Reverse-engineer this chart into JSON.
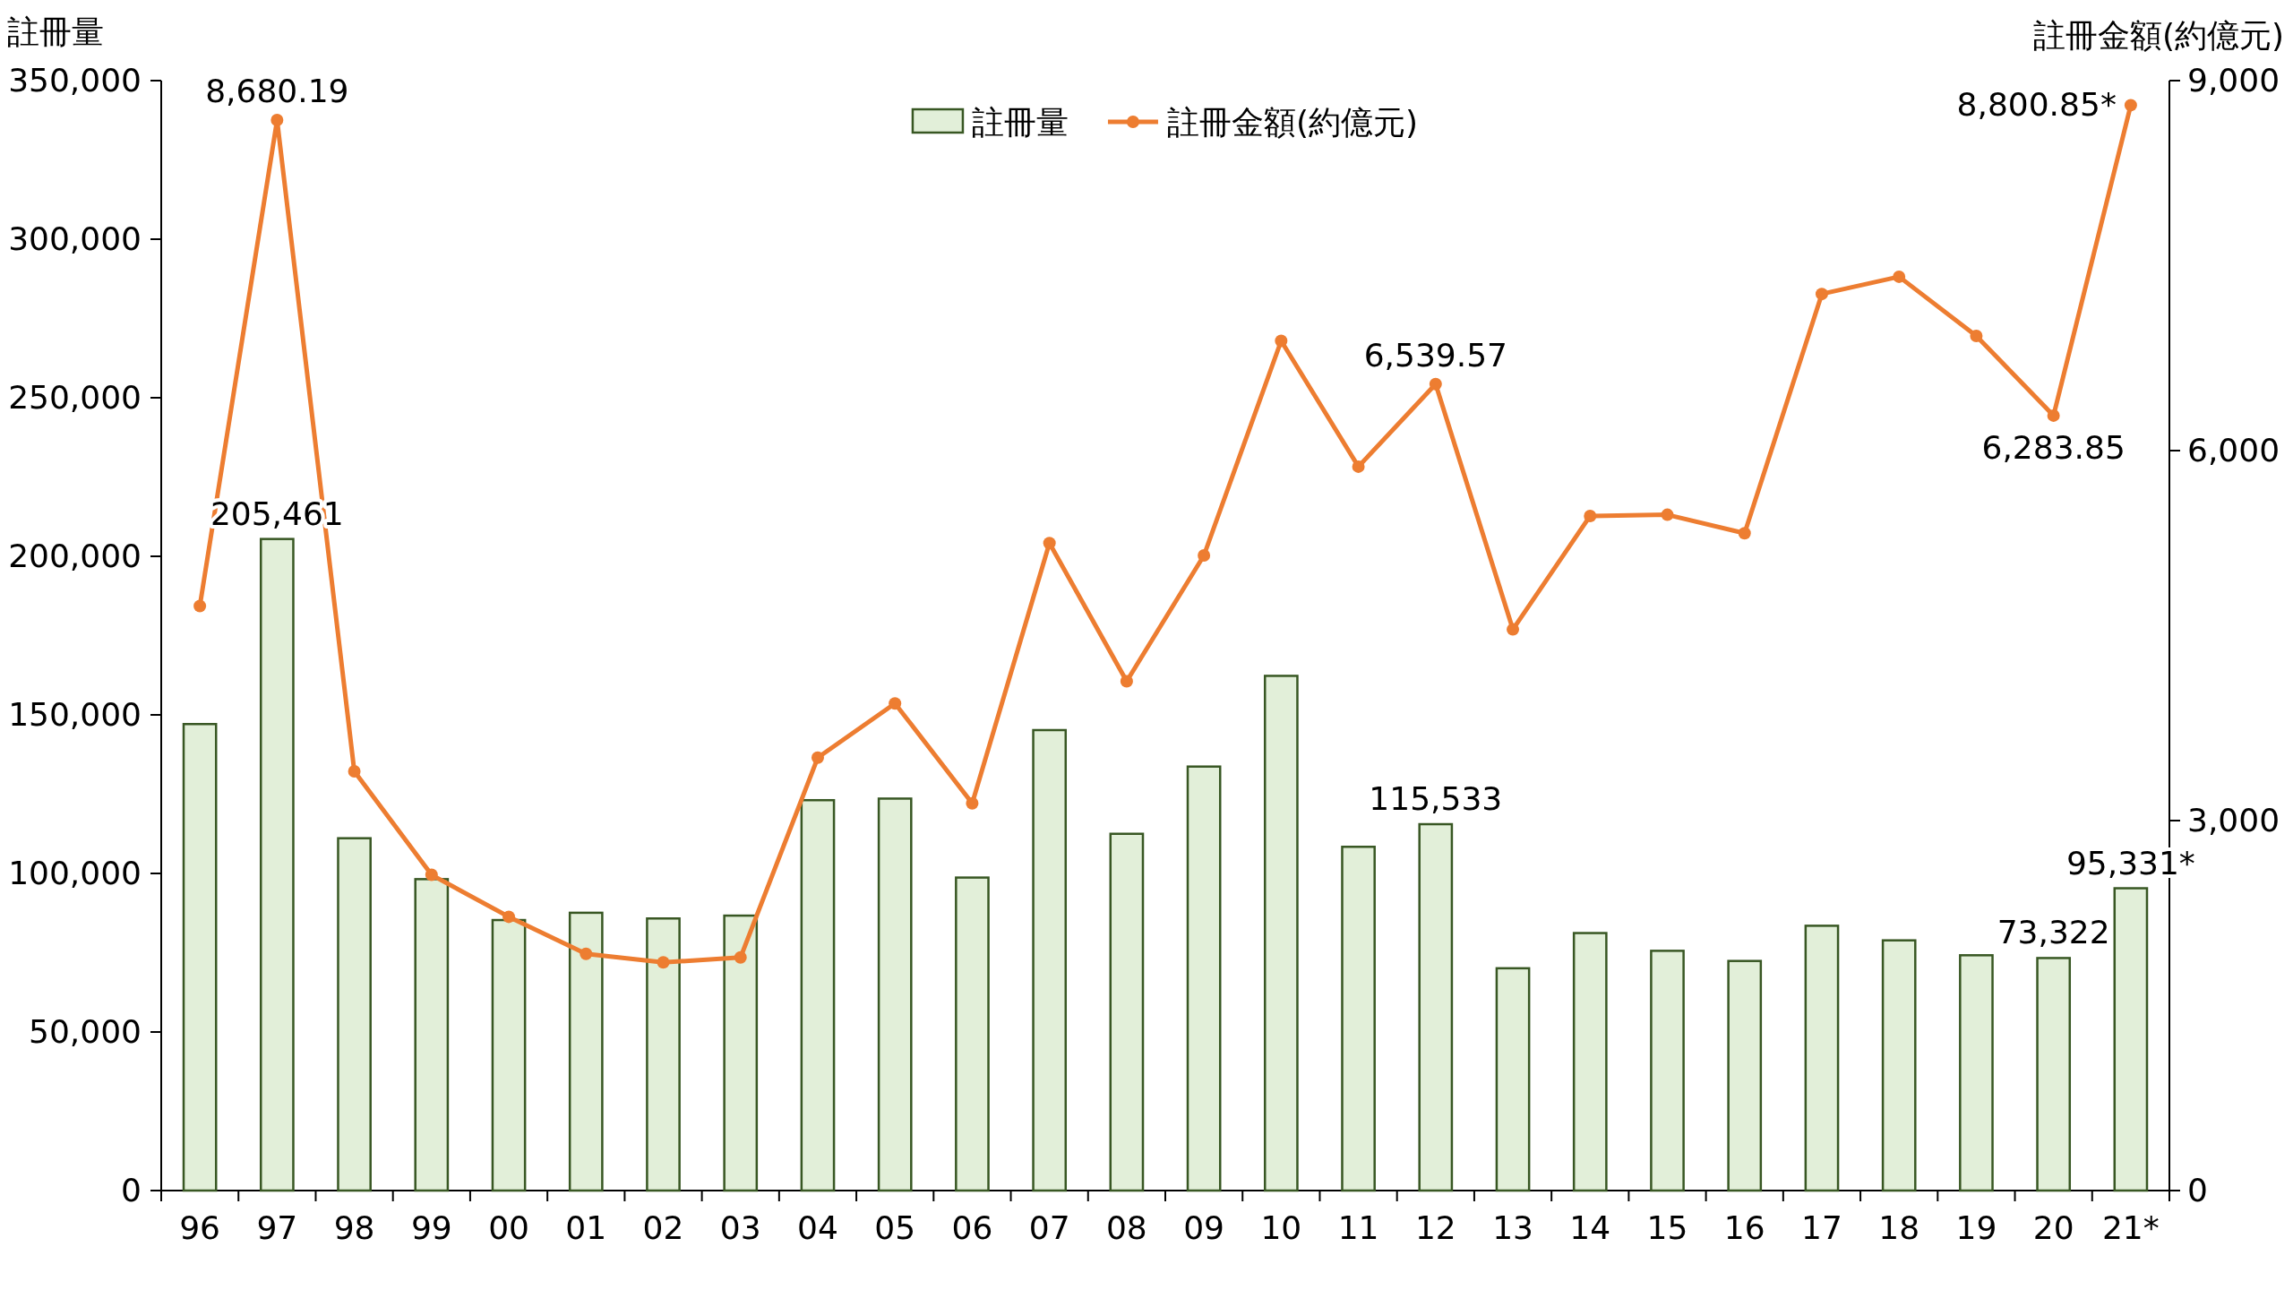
{
  "chart_data": {
    "type": "bar",
    "ylabel": "註冊量",
    "y2label": "註冊金額(約億元)",
    "legend": "top",
    "categories": [
      "96",
      "97",
      "98",
      "99",
      "00",
      "01",
      "02",
      "03",
      "04",
      "05",
      "06",
      "07",
      "08",
      "09",
      "10",
      "11",
      "12",
      "13",
      "14",
      "15",
      "16",
      "17",
      "18",
      "19",
      "20",
      "21*"
    ],
    "ylim": [
      0,
      350000
    ],
    "yticks": [
      {
        "value": 0,
        "label": "0"
      },
      {
        "value": 50000,
        "label": "50,000"
      },
      {
        "value": 100000,
        "label": "100,000"
      },
      {
        "value": 150000,
        "label": "150,000"
      },
      {
        "value": 200000,
        "label": "200,000"
      },
      {
        "value": 250000,
        "label": "250,000"
      },
      {
        "value": 300000,
        "label": "300,000"
      },
      {
        "value": 350000,
        "label": "350,000"
      }
    ],
    "y2lim": [
      0,
      9000
    ],
    "y2ticks": [
      {
        "value": 0,
        "label": "0"
      },
      {
        "value": 3000,
        "label": "3,000"
      },
      {
        "value": 6000,
        "label": "6,000"
      },
      {
        "value": 9000,
        "label": "9,000"
      }
    ],
    "series": [
      {
        "name": "註冊量",
        "color": "#e2efd9",
        "values": [
          147100,
          205461,
          111100,
          98200,
          85300,
          87600,
          85800,
          86700,
          123100,
          123600,
          98700,
          145200,
          112500,
          133700,
          162300,
          108400,
          115533,
          70100,
          81200,
          75600,
          72400,
          83500,
          78900,
          74200,
          73322,
          95331
        ],
        "value_labels": [
          null,
          "205,461",
          null,
          null,
          null,
          null,
          null,
          null,
          null,
          null,
          null,
          null,
          null,
          null,
          null,
          null,
          "115,533",
          null,
          null,
          null,
          null,
          null,
          null,
          null,
          "73,322",
          "95,331*"
        ]
      },
      {
        "name": "註冊金額(約億元)",
        "type": "line",
        "axis": "y2",
        "color": "#ed7d31",
        "marker": "circle",
        "values": [
          4740,
          8680.19,
          3400,
          2560,
          2220,
          1920,
          1850,
          1890,
          3510,
          3950,
          3140,
          5250,
          4130,
          5150,
          6890,
          5870,
          6539.57,
          4550,
          5470,
          5480,
          5330,
          7270,
          7410,
          6930,
          6283.85,
          8800.85
        ],
        "value_labels": [
          null,
          "8,680.19",
          null,
          null,
          null,
          null,
          null,
          null,
          null,
          null,
          null,
          null,
          null,
          null,
          null,
          null,
          "6,539.57",
          null,
          null,
          null,
          null,
          null,
          null,
          null,
          "6,283.85",
          "8,800.85*"
        ]
      }
    ]
  }
}
